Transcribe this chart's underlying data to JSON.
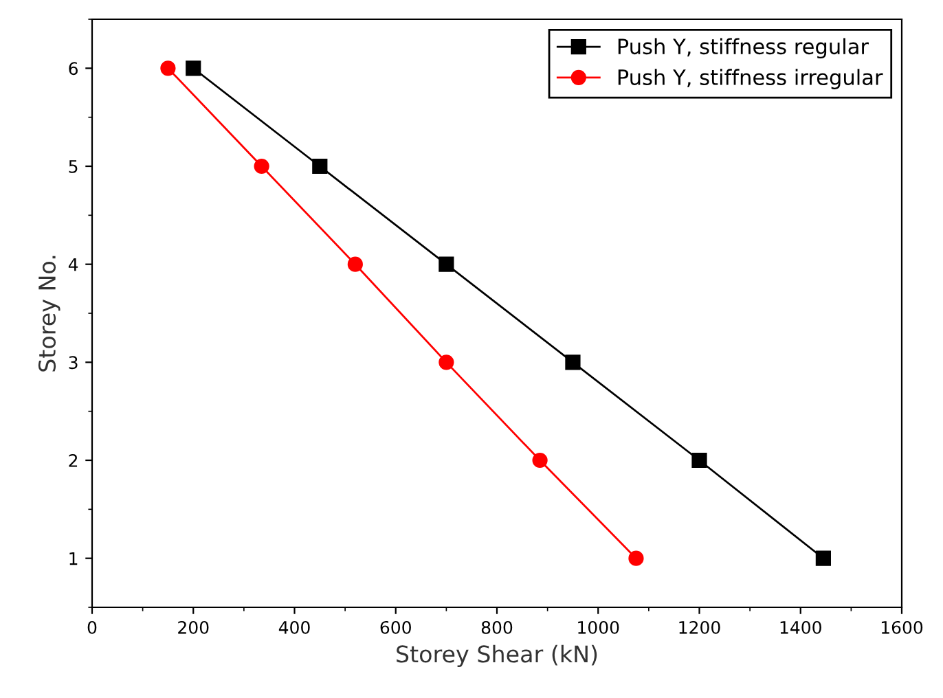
{
  "chart_data": {
    "type": "line",
    "xlabel": "Storey Shear (kN)",
    "ylabel": "Storey No.",
    "series": [
      {
        "name": "Push Y, stiffness regular",
        "color": "#000000",
        "marker": "square",
        "x": [
          200,
          450,
          700,
          950,
          1200,
          1445
        ],
        "values": [
          6,
          5,
          4,
          3,
          2,
          1
        ]
      },
      {
        "name": "Push Y, stiffness irregular",
        "color": "#ff0000",
        "marker": "circle",
        "x": [
          150,
          335,
          520,
          700,
          885,
          1075
        ],
        "values": [
          6,
          5,
          4,
          3,
          2,
          1
        ]
      }
    ],
    "xlim": [
      0,
      1600
    ],
    "xticks": [
      0,
      200,
      400,
      600,
      800,
      1000,
      1200,
      1400,
      1600
    ],
    "ylim": [
      0.5,
      6.5
    ],
    "yticks": [
      1,
      2,
      3,
      4,
      5,
      6
    ],
    "grid": false,
    "legend": "top right",
    "line_style": "solid"
  }
}
